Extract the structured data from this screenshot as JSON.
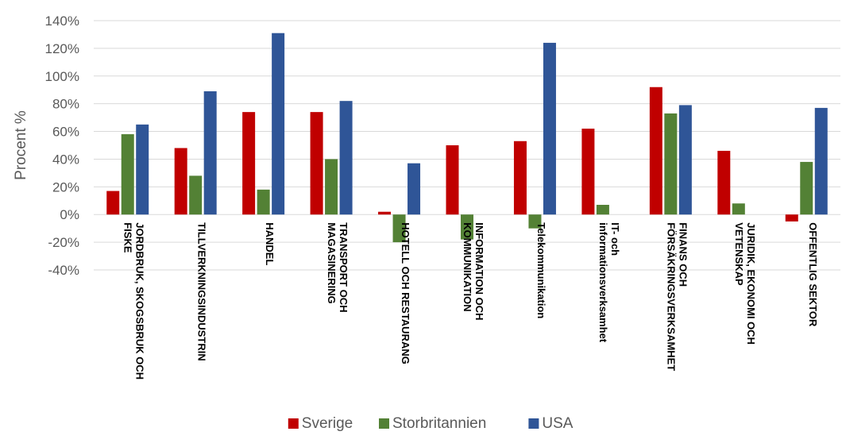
{
  "chart_data": {
    "type": "bar",
    "ylabel": "Procent %",
    "ylim": [
      -0.4,
      1.4
    ],
    "yticks": [
      -0.4,
      -0.2,
      0,
      0.2,
      0.4,
      0.6,
      0.8,
      1.0,
      1.2,
      1.4
    ],
    "ytick_labels": [
      "-40%",
      "-20%",
      "0%",
      "20%",
      "40%",
      "60%",
      "80%",
      "100%",
      "120%",
      "140%"
    ],
    "grid": true,
    "legend_position": "bottom",
    "categories": [
      [
        "JORDBRUK, SKOGSBRUK OCH",
        "FISKE"
      ],
      [
        "TILLVERKNINGSINDUSTRIN"
      ],
      [
        "HANDEL"
      ],
      [
        "TRANSPORT OCH",
        "MAGASINERING"
      ],
      [
        "HOTELL OCH RESTAURANG"
      ],
      [
        "INFORMATION OCH",
        "KOMMUNIKATION"
      ],
      [
        "Telekommunikation"
      ],
      [
        "IT- och",
        "informationsverksamhet"
      ],
      [
        "FINANS OCH",
        "FÖRSÄKRINGSVERKSAMHET"
      ],
      [
        "JURIDIK, EKONOMI OCH",
        "VETENSKAP"
      ],
      [
        "OFFENTLIG SEKTOR"
      ]
    ],
    "series": [
      {
        "name": "Sverige",
        "color": "#c00000",
        "values": [
          0.17,
          0.48,
          0.74,
          0.74,
          0.02,
          0.5,
          0.53,
          0.62,
          0.92,
          0.46,
          -0.05
        ]
      },
      {
        "name": "Storbritannien",
        "color": "#538135",
        "values": [
          0.58,
          0.28,
          0.18,
          0.4,
          -0.2,
          -0.18,
          -0.1,
          0.07,
          0.73,
          0.08,
          0.38
        ]
      },
      {
        "name": "USA",
        "color": "#2f5597",
        "values": [
          0.65,
          0.89,
          1.31,
          0.82,
          0.37,
          null,
          1.24,
          null,
          0.79,
          null,
          0.77
        ]
      }
    ]
  }
}
